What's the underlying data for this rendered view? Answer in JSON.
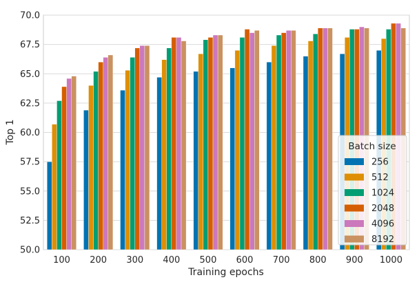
{
  "chart_data": {
    "type": "bar",
    "title": "",
    "xlabel": "Training epochs",
    "ylabel": "Top 1",
    "categories": [
      "100",
      "200",
      "300",
      "400",
      "500",
      "600",
      "700",
      "800",
      "900",
      "1000"
    ],
    "ylim": [
      50.0,
      70.0
    ],
    "yticks": [
      "50.0",
      "52.5",
      "55.0",
      "57.5",
      "60.0",
      "62.5",
      "65.0",
      "67.5",
      "70.0"
    ],
    "grid": true,
    "legend": {
      "title": "Batch size",
      "placement": "lower-right"
    },
    "series": [
      {
        "name": "256",
        "color": "#0173b2",
        "values": [
          57.5,
          61.9,
          63.6,
          64.7,
          65.2,
          65.5,
          66.0,
          66.5,
          66.7,
          67.0
        ]
      },
      {
        "name": "512",
        "color": "#de8f05",
        "values": [
          60.7,
          64.0,
          65.3,
          66.2,
          66.7,
          67.0,
          67.4,
          67.8,
          68.1,
          68.0
        ]
      },
      {
        "name": "1024",
        "color": "#029e73",
        "values": [
          62.7,
          65.2,
          66.4,
          67.2,
          67.9,
          68.1,
          68.3,
          68.4,
          68.8,
          68.8
        ]
      },
      {
        "name": "2048",
        "color": "#d55e00",
        "values": [
          63.9,
          66.0,
          67.2,
          68.1,
          68.1,
          68.8,
          68.5,
          68.9,
          68.8,
          69.3
        ]
      },
      {
        "name": "4096",
        "color": "#cc78bc",
        "values": [
          64.6,
          66.4,
          67.4,
          68.1,
          68.3,
          68.5,
          68.7,
          68.9,
          69.0,
          69.3
        ]
      },
      {
        "name": "8192",
        "color": "#ca9161",
        "values": [
          64.8,
          66.6,
          67.4,
          67.8,
          68.3,
          68.7,
          68.7,
          68.9,
          68.9,
          68.9
        ]
      }
    ]
  }
}
